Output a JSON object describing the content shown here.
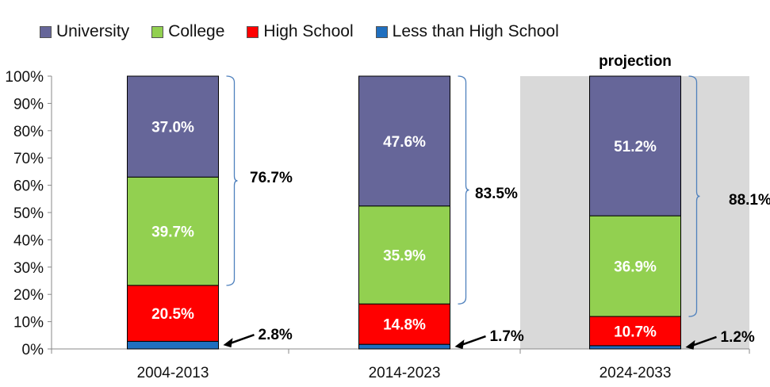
{
  "chart_data": {
    "type": "bar",
    "stacked": true,
    "percent_scale": true,
    "categories": [
      "2004-2013",
      "2014-2023",
      "2024-2033"
    ],
    "series": [
      {
        "name": "Less than High School",
        "values": [
          2.8,
          1.7,
          1.2
        ],
        "color": "#1f6fbf"
      },
      {
        "name": "High School",
        "values": [
          20.5,
          14.8,
          10.7
        ],
        "color": "#ff0000"
      },
      {
        "name": "College",
        "values": [
          39.7,
          35.9,
          36.9
        ],
        "color": "#92d050"
      },
      {
        "name": "University",
        "values": [
          37.0,
          47.6,
          51.2
        ],
        "color": "#666699"
      }
    ],
    "bar_labels": {
      "University": [
        "37.0%",
        "47.6%",
        "51.2%"
      ],
      "College": [
        "39.7%",
        "35.9%",
        "36.9%"
      ],
      "High School": [
        "20.5%",
        "14.8%",
        "10.7%"
      ],
      "Less than High School": [
        "2.8%",
        "1.7%",
        "1.2%"
      ]
    },
    "bracket_totals": [
      "76.7%",
      "83.5%",
      "88.1%"
    ],
    "y_ticks": [
      "0%",
      "10%",
      "20%",
      "30%",
      "40%",
      "50%",
      "60%",
      "70%",
      "80%",
      "90%",
      "100%"
    ],
    "ylim": [
      0,
      100
    ],
    "grid": false,
    "legend_position": "top",
    "projection_label": "projection",
    "projection_category": "2024-2033",
    "projection_shade": "#d9d9d9",
    "legend": [
      "University",
      "College",
      "High School",
      "Less than High School"
    ],
    "legend_colors": {
      "University": "#666699",
      "College": "#92d050",
      "High School": "#ff0000",
      "Less than High School": "#1f6fbf"
    }
  }
}
